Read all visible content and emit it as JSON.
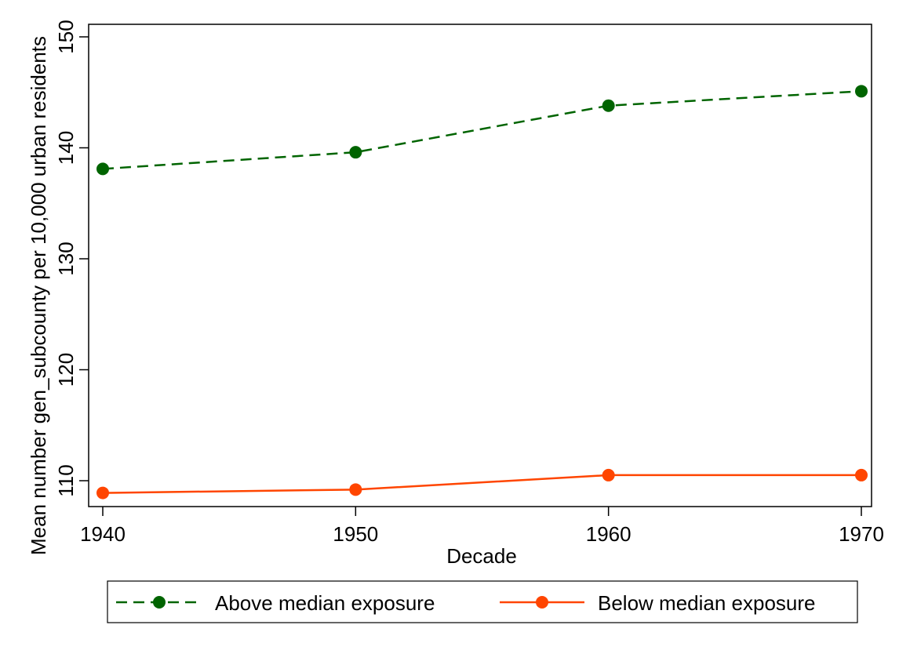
{
  "chart_data": {
    "type": "line",
    "title": "",
    "xlabel": "Decade",
    "ylabel": "Mean number gen_subcounty per 10,000 urban residents",
    "x": [
      1940,
      1950,
      1960,
      1970
    ],
    "xlim": [
      1940,
      1970
    ],
    "ylim": [
      108.8,
      151.3
    ],
    "x_ticks": [
      "1940",
      "1950",
      "1960",
      "1970"
    ],
    "y_ticks": [
      "110",
      "120",
      "130",
      "140",
      "150"
    ],
    "grid": false,
    "legend_position": "bottom",
    "series": [
      {
        "name": "Above median exposure",
        "values": [
          138.1,
          139.6,
          143.8,
          145.1
        ],
        "color": "#006400",
        "line_style": "dashed",
        "marker": "circle"
      },
      {
        "name": "Below median exposure",
        "values": [
          108.9,
          109.2,
          110.5,
          110.5
        ],
        "color": "#FF4500",
        "line_style": "solid",
        "marker": "circle"
      }
    ]
  }
}
